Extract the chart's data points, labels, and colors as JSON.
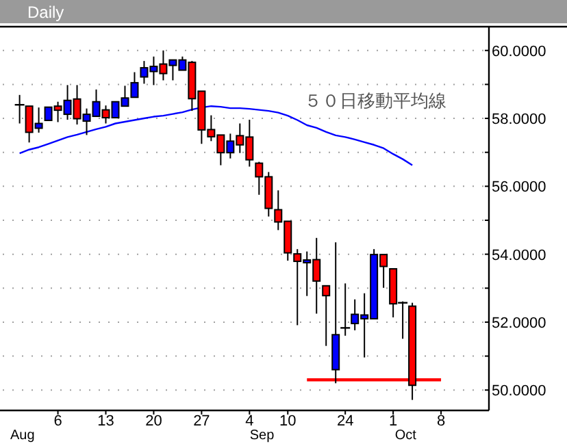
{
  "chart_data": {
    "type": "candlestick",
    "title": "Daily",
    "categories": [
      null,
      null,
      null,
      null,
      "6",
      null,
      null,
      null,
      null,
      "13",
      null,
      null,
      null,
      null,
      "20",
      null,
      null,
      null,
      null,
      "27",
      null,
      null,
      null,
      null,
      "4",
      null,
      null,
      null,
      "10",
      null,
      null,
      null,
      null,
      null,
      "24",
      null,
      null,
      null,
      null,
      "1",
      null,
      null,
      null,
      null,
      "8"
    ],
    "ohlc": [
      [
        58.4,
        58.69,
        57.85,
        58.4
      ],
      [
        58.36,
        58.36,
        57.29,
        57.59
      ],
      [
        57.71,
        58.32,
        57.58,
        57.85
      ],
      [
        57.94,
        58.33,
        57.92,
        58.33
      ],
      [
        58.36,
        58.49,
        57.89,
        58.24
      ],
      [
        58.12,
        58.98,
        57.96,
        58.53
      ],
      [
        58.57,
        58.98,
        57.82,
        57.99
      ],
      [
        57.92,
        58.29,
        57.51,
        58.12
      ],
      [
        58.06,
        58.85,
        58.06,
        58.49
      ],
      [
        58.25,
        58.38,
        57.85,
        58.02
      ],
      [
        58.02,
        58.49,
        58.02,
        58.49
      ],
      [
        58.36,
        58.96,
        58.36,
        58.6
      ],
      [
        58.62,
        59.36,
        58.62,
        59.05
      ],
      [
        59.22,
        59.69,
        59.02,
        59.49
      ],
      [
        59.38,
        59.82,
        58.98,
        59.53
      ],
      [
        59.6,
        60.0,
        59.12,
        59.32
      ],
      [
        59.56,
        59.72,
        59.12,
        59.72
      ],
      [
        59.42,
        59.82,
        59.42,
        59.72
      ],
      [
        59.65,
        59.69,
        58.22,
        58.58
      ],
      [
        58.8,
        58.8,
        57.25,
        57.66
      ],
      [
        57.67,
        58.09,
        57.33,
        57.46
      ],
      [
        57.51,
        57.51,
        56.62,
        56.99
      ],
      [
        56.99,
        57.55,
        56.82,
        57.33
      ],
      [
        57.49,
        57.85,
        56.98,
        57.22
      ],
      [
        57.45,
        57.96,
        56.58,
        56.78
      ],
      [
        56.68,
        56.72,
        55.75,
        56.28
      ],
      [
        56.28,
        56.42,
        55.11,
        55.35
      ],
      [
        55.31,
        55.88,
        54.71,
        54.95
      ],
      [
        54.97,
        54.97,
        53.81,
        54.04
      ],
      [
        54.01,
        54.15,
        51.91,
        53.79
      ],
      [
        53.75,
        54.08,
        52.77,
        53.83
      ],
      [
        53.84,
        54.48,
        52.25,
        53.21
      ],
      [
        53.07,
        53.07,
        51.3,
        52.78
      ],
      [
        50.6,
        54.35,
        50.2,
        51.63
      ],
      [
        51.83,
        53.14,
        51.6,
        51.83
      ],
      [
        51.96,
        52.67,
        51.76,
        52.23
      ],
      [
        52.1,
        52.85,
        50.96,
        52.21
      ],
      [
        52.1,
        54.15,
        52.1,
        53.99
      ],
      [
        53.99,
        53.99,
        53.01,
        53.64
      ],
      [
        53.57,
        53.57,
        52.14,
        52.54
      ],
      [
        52.57,
        52.61,
        51.51,
        52.57
      ],
      [
        52.47,
        52.57,
        49.71,
        50.14
      ],
      null,
      null,
      null
    ],
    "colors": [
      "#000000",
      "#ff0000",
      "#0000ff",
      "#0000ff",
      "#ff0000",
      "#0000ff",
      "#ff0000",
      "#0000ff",
      "#0000ff",
      "#ff0000",
      "#0000ff",
      "#0000ff",
      "#0000ff",
      "#0000ff",
      "#0000ff",
      "#ff0000",
      "#0000ff",
      "#0000ff",
      "#ff0000",
      "#ff0000",
      "#ff0000",
      "#ff0000",
      "#0000ff",
      "#ff0000",
      "#ff0000",
      "#ff0000",
      "#ff0000",
      "#ff0000",
      "#ff0000",
      "#ff0000",
      "#0000ff",
      "#ff0000",
      "#ff0000",
      "#0000ff",
      "#000000",
      "#0000ff",
      "#0000ff",
      "#0000ff",
      "#ff0000",
      "#ff0000",
      "#000000",
      "#ff0000",
      null,
      null,
      null
    ],
    "series": [
      {
        "name": "５０日移動平均線",
        "type": "line",
        "color": "#0000ff",
        "values": [
          56.97,
          57.08,
          57.15,
          57.25,
          57.35,
          57.45,
          57.52,
          57.6,
          57.68,
          57.75,
          57.85,
          57.9,
          57.95,
          58.0,
          58.05,
          58.08,
          58.13,
          58.18,
          58.26,
          58.32,
          58.36,
          58.34,
          58.3,
          58.3,
          58.28,
          58.25,
          58.22,
          58.17,
          58.08,
          57.95,
          57.8,
          57.72,
          57.6,
          57.5,
          57.45,
          57.38,
          57.3,
          57.22,
          57.12,
          56.95,
          56.8,
          56.62,
          null,
          null,
          null
        ]
      },
      {
        "type": "line",
        "color": "#ff0000",
        "values": [
          null,
          null,
          null,
          null,
          null,
          null,
          null,
          null,
          null,
          null,
          null,
          null,
          null,
          null,
          null,
          null,
          null,
          null,
          null,
          null,
          null,
          null,
          null,
          null,
          null,
          null,
          null,
          null,
          null,
          null,
          50.3,
          50.3,
          50.3,
          50.3,
          50.3,
          50.3,
          50.3,
          50.3,
          50.3,
          50.3,
          50.3,
          50.3,
          50.3,
          50.3,
          50.3
        ]
      }
    ],
    "ylim": [
      49.4,
      60.7
    ],
    "yticks": [
      {
        "value": 50,
        "label": "50.0000"
      },
      {
        "value": 51,
        "label": null
      },
      {
        "value": 52,
        "label": "52.0000"
      },
      {
        "value": 53,
        "label": null
      },
      {
        "value": 54,
        "label": "54.0000"
      },
      {
        "value": 55,
        "label": null
      },
      {
        "value": 56,
        "label": "56.0000"
      },
      {
        "value": 57,
        "label": null
      },
      {
        "value": 58,
        "label": "58.0000"
      },
      {
        "value": 59,
        "label": null
      },
      {
        "value": 60,
        "label": "60.0000"
      }
    ],
    "grid": "y",
    "annotations": [
      "Aug",
      "Sep",
      "Oct"
    ]
  }
}
